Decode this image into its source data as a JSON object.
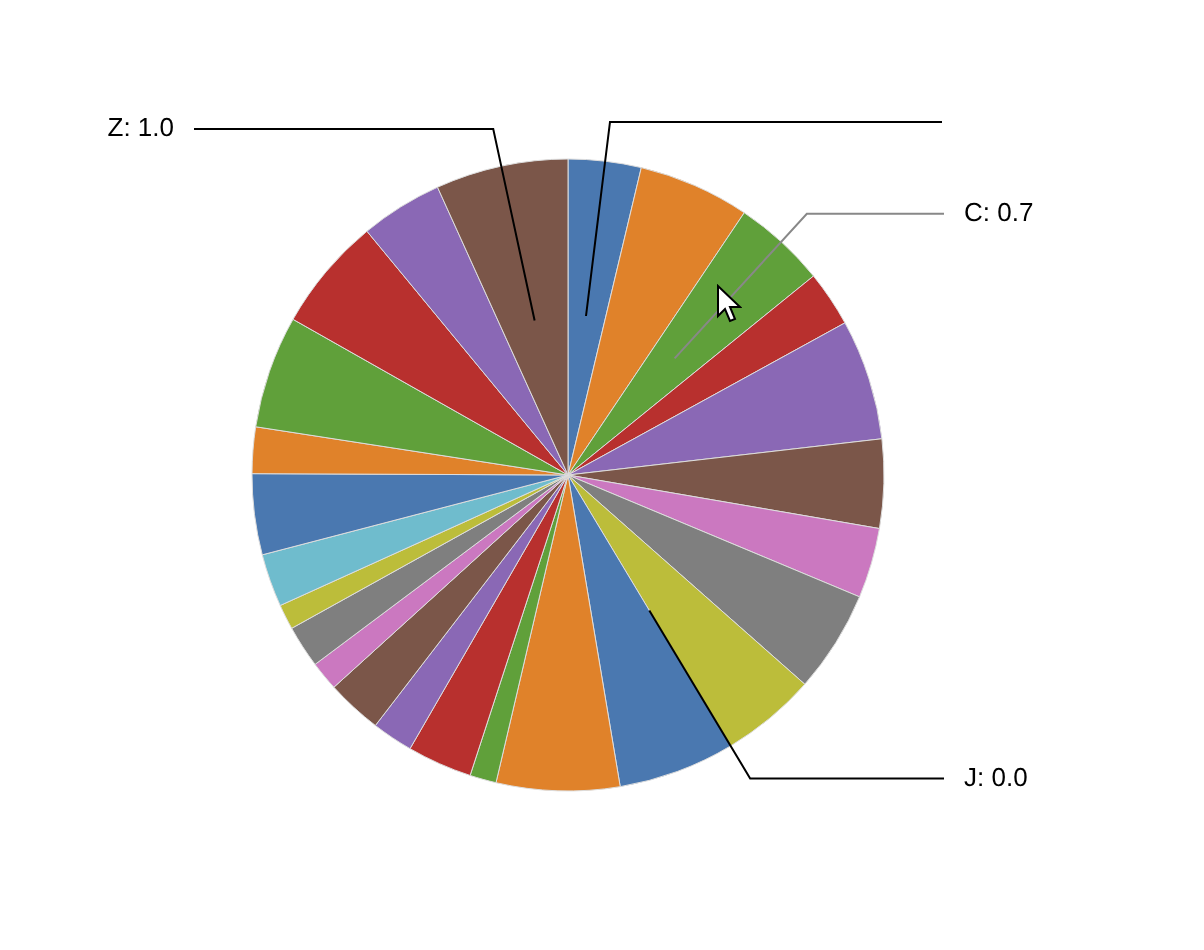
{
  "chart_data": {
    "type": "pie",
    "categories": [
      null,
      null,
      null,
      null,
      null,
      null,
      null,
      null,
      null,
      null,
      null,
      null,
      null,
      null,
      null,
      null,
      null,
      null,
      null,
      null,
      null,
      null,
      null,
      null,
      null,
      null
    ],
    "values": [
      0.55,
      0.84,
      0.7,
      0.42,
      0.91,
      0.67,
      0.53,
      0.77,
      0.72,
      0.0,
      0.88,
      0.93,
      0.2,
      0.49,
      0.31,
      0.42,
      0.22,
      0.32,
      0.19,
      0.4,
      0.61,
      0.35,
      0.85,
      0.86,
      0.62,
      1.0
    ],
    "colors": [
      "#4a78b0",
      "#e0822a",
      "#60a03a",
      "#b8302e",
      "#8a68b5",
      "#7b5649",
      "#cb78c0",
      "#7f7f7f",
      "#bcbd3a",
      "#6fbccd",
      "#4a78b0",
      "#e0822a",
      "#60a03a",
      "#b8302e",
      "#8a68b5",
      "#7b5649",
      "#cb78c0",
      "#7f7f7f",
      "#bcbd3a",
      "#6fbccd",
      "#4a78b0",
      "#e0822a",
      "#60a03a",
      "#b8302e",
      "#8a68b5",
      "#7b5649"
    ],
    "value_labels": [
      null,
      null,
      "C: 0.7",
      null,
      null,
      null,
      null,
      null,
      null,
      "J: 0.0",
      null,
      null,
      null,
      null,
      null,
      null,
      null,
      null,
      null,
      null,
      null,
      null,
      null,
      null,
      null,
      "Z: 1.0"
    ]
  }
}
